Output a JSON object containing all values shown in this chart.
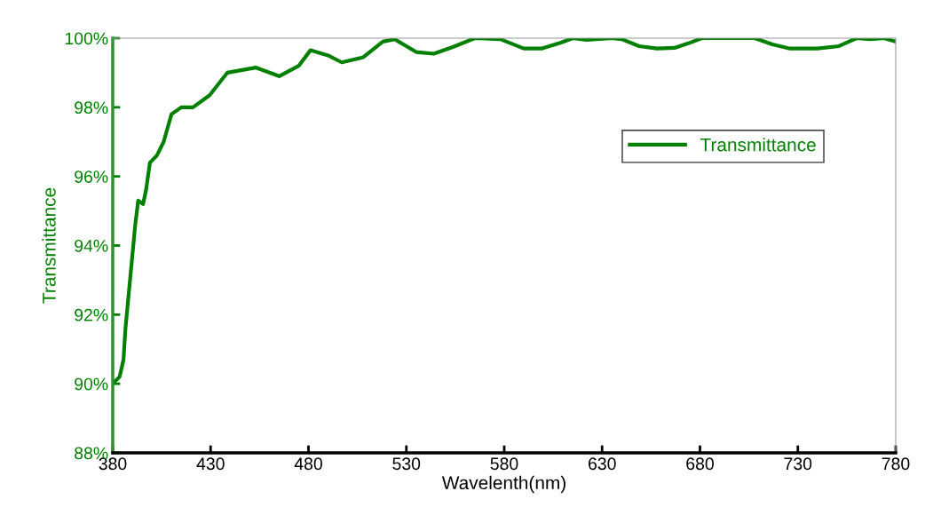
{
  "chart_data": {
    "type": "line",
    "xlabel": "Wavelenth(nm)",
    "ylabel": "Transmittance",
    "x": [
      380,
      383.5,
      385.5,
      386.5,
      389,
      391.5,
      393,
      395.5,
      397,
      399,
      402.5,
      406,
      410,
      415,
      421,
      429.5,
      438.5,
      453,
      465,
      475,
      481,
      490,
      497,
      508,
      518,
      524,
      535,
      544,
      554,
      565,
      578,
      590,
      599,
      609,
      615,
      622,
      635,
      640,
      649,
      658,
      667,
      674,
      681,
      708,
      717,
      726,
      740,
      751,
      760,
      767,
      774,
      780
    ],
    "series": [
      {
        "name": "Transmittance",
        "color": "#008000",
        "values": [
          90.0,
          90.2,
          90.7,
          91.6,
          93.1,
          94.6,
          95.3,
          95.2,
          95.6,
          96.4,
          96.6,
          97.0,
          97.8,
          98.0,
          98.0,
          98.35,
          99.0,
          99.15,
          98.9,
          99.2,
          99.65,
          99.5,
          99.3,
          99.45,
          99.9,
          99.97,
          99.6,
          99.55,
          99.75,
          100,
          99.97,
          99.7,
          99.7,
          99.87,
          100,
          99.95,
          100,
          99.97,
          99.77,
          99.7,
          99.72,
          99.85,
          100,
          100,
          99.82,
          99.7,
          99.7,
          99.77,
          100,
          99.97,
          100,
          99.9
        ]
      }
    ],
    "xlim": [
      380,
      780
    ],
    "xticks": [
      380,
      430,
      480,
      530,
      580,
      630,
      680,
      730,
      780
    ],
    "ylim": [
      88,
      100
    ],
    "yticks": [
      {
        "value": 88,
        "label": "88%"
      },
      {
        "value": 90,
        "label": "90%"
      },
      {
        "value": 92,
        "label": "92%"
      },
      {
        "value": 94,
        "label": "94%"
      },
      {
        "value": 96,
        "label": "96%"
      },
      {
        "value": 98,
        "label": "98%"
      },
      {
        "value": 100,
        "label": "100%"
      }
    ],
    "legend": "top right",
    "grid": false,
    "line_style": "solid",
    "marker": "none"
  }
}
